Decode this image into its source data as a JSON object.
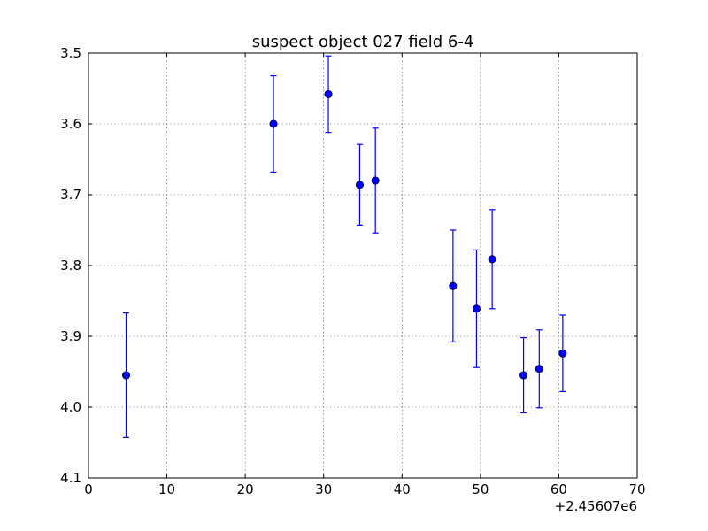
{
  "chart_data": {
    "type": "scatter",
    "title": "suspect object 027 field 6-4",
    "xlabel": "",
    "ylabel": "",
    "x_offset_label": "+2.45607e6",
    "xlim": [
      0,
      70
    ],
    "ylim": [
      3.5,
      4.1
    ],
    "y_inverted": true,
    "grid": true,
    "x_ticks": [
      0,
      10,
      20,
      30,
      40,
      50,
      60,
      70
    ],
    "x_tick_labels": [
      "0",
      "10",
      "20",
      "30",
      "40",
      "50",
      "60",
      "70"
    ],
    "y_ticks": [
      3.5,
      3.6,
      3.7,
      3.8,
      3.9,
      4.0,
      4.1
    ],
    "y_tick_labels": [
      "3.5",
      "3.6",
      "3.7",
      "3.8",
      "3.9",
      "4.0",
      "4.1"
    ],
    "marker_color": "#0000ff",
    "errorbar_color": "#0000ff",
    "series": [
      {
        "points": [
          {
            "x": 4.8,
            "y": 3.955,
            "err": 0.088
          },
          {
            "x": 23.6,
            "y": 3.6,
            "err": 0.068
          },
          {
            "x": 30.6,
            "y": 3.558,
            "err": 0.054
          },
          {
            "x": 34.6,
            "y": 3.686,
            "err": 0.057
          },
          {
            "x": 36.6,
            "y": 3.68,
            "err": 0.074
          },
          {
            "x": 46.5,
            "y": 3.829,
            "err": 0.079
          },
          {
            "x": 49.5,
            "y": 3.861,
            "err": 0.083
          },
          {
            "x": 51.5,
            "y": 3.791,
            "err": 0.07
          },
          {
            "x": 55.5,
            "y": 3.955,
            "err": 0.053
          },
          {
            "x": 57.5,
            "y": 3.946,
            "err": 0.055
          },
          {
            "x": 60.5,
            "y": 3.924,
            "err": 0.054
          }
        ]
      }
    ]
  }
}
